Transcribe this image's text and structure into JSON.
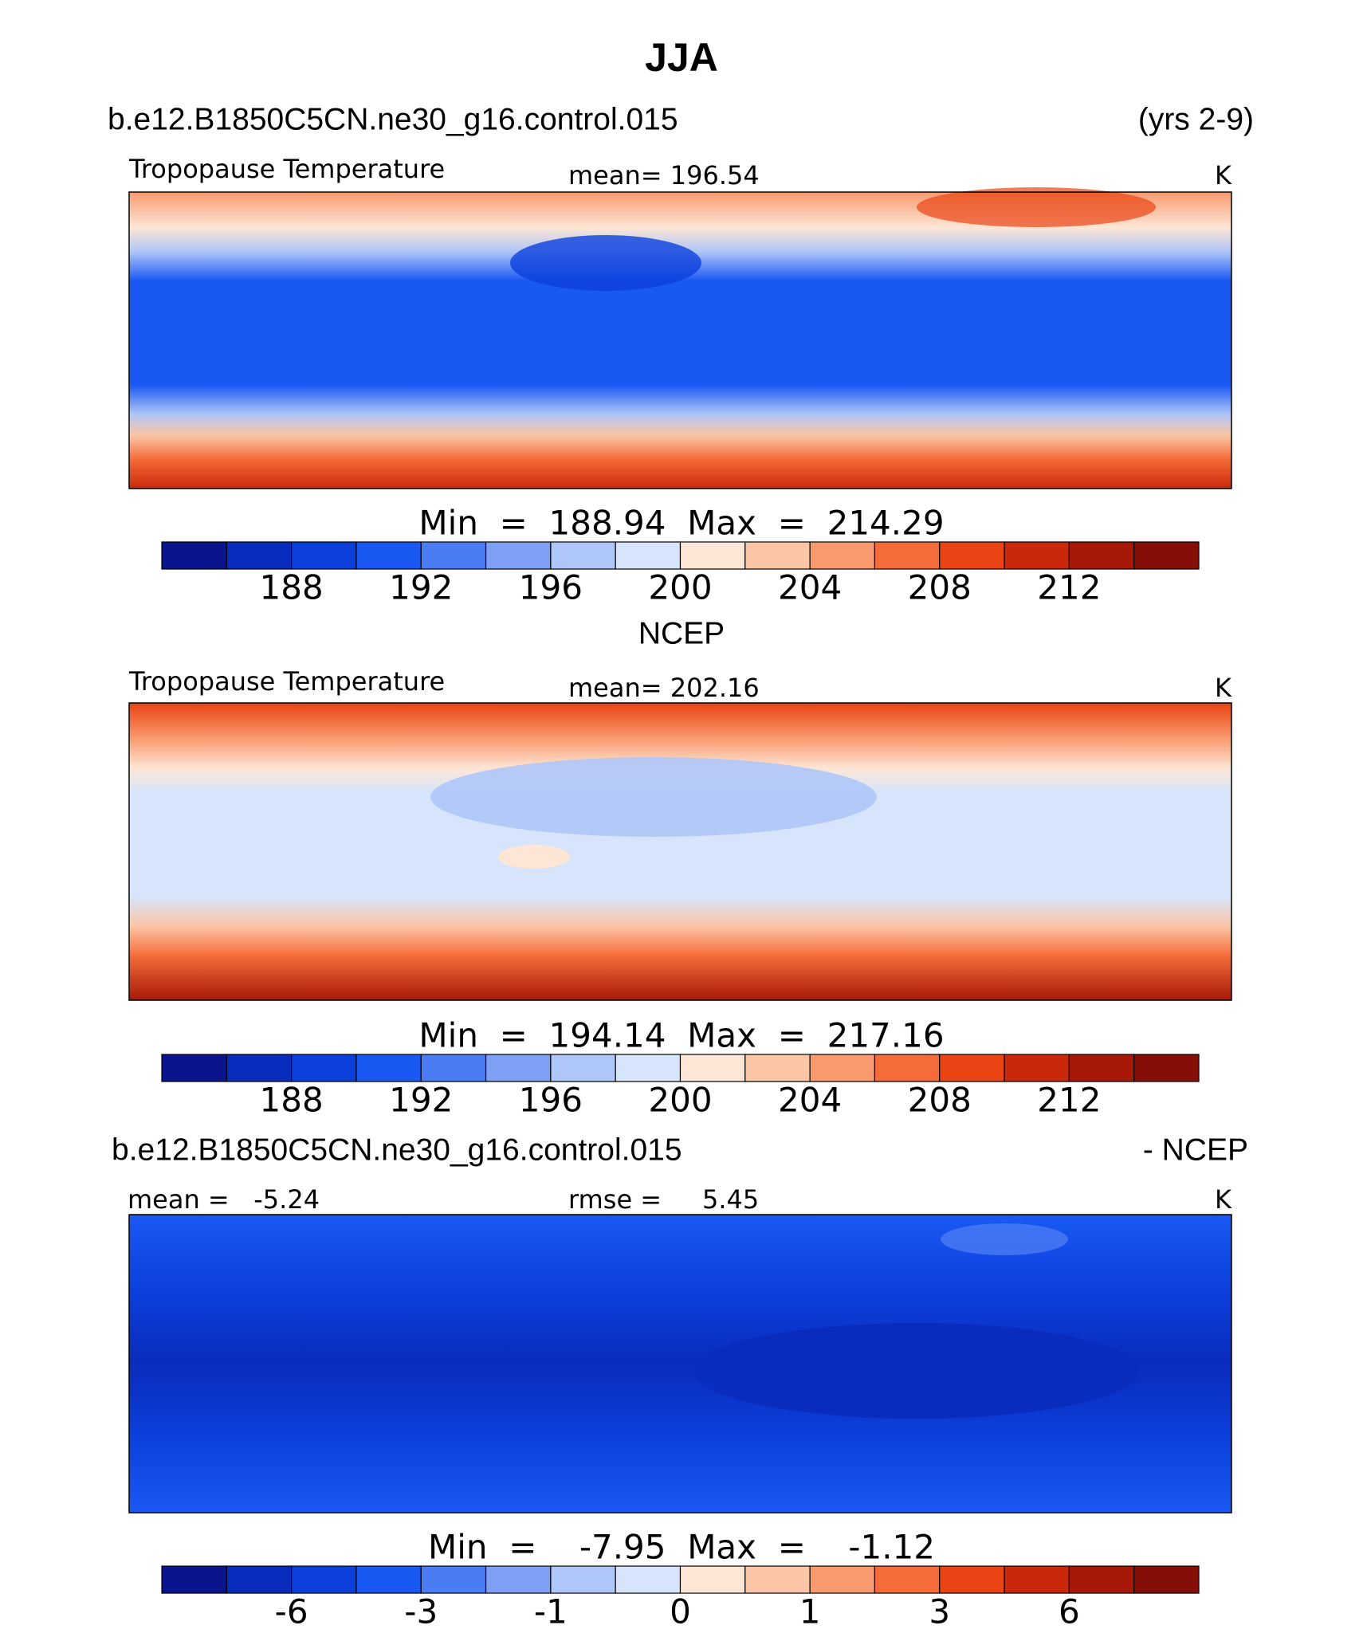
{
  "title": "JJA",
  "colormap": [
    "#0a148c",
    "#0a2cbc",
    "#0b40dc",
    "#1a58f4",
    "#4a7cf4",
    "#7ea0f4",
    "#afc6f8",
    "#d6e5fb",
    "#fde6d6",
    "#fbc6a6",
    "#f89a6e",
    "#f56c3a",
    "#ea4414",
    "#ca280a",
    "#a81808",
    "#850e06"
  ],
  "panels": [
    {
      "case": "b.e12.B1850C5CN.ne30_g16.control.015",
      "period": "(yrs 2-9)",
      "variable": "Tropopause Temperature",
      "mean": "mean= 196.54",
      "units": "K",
      "min_max": "Min  =  188.94  Max  =  214.29",
      "colorbar_labels": [
        188,
        192,
        196,
        200,
        204,
        208,
        212
      ]
    },
    {
      "case": "NCEP",
      "variable": "Tropopause Temperature",
      "mean": "mean= 202.16",
      "units": "K",
      "min_max": "Min  =  194.14  Max  =  217.16",
      "colorbar_labels": [
        188,
        192,
        196,
        200,
        204,
        208,
        212
      ]
    },
    {
      "case": "b.e12.B1850C5CN.ne30_g16.control.015",
      "suffix": "- NCEP",
      "mean": "mean =   -5.24",
      "rmse": "rmse =     5.45",
      "units": "K",
      "min_max": "Min  =    -7.95  Max  =    -1.12",
      "colorbar_labels": [
        -6,
        -3,
        -1,
        0,
        1,
        3,
        6
      ]
    }
  ]
}
